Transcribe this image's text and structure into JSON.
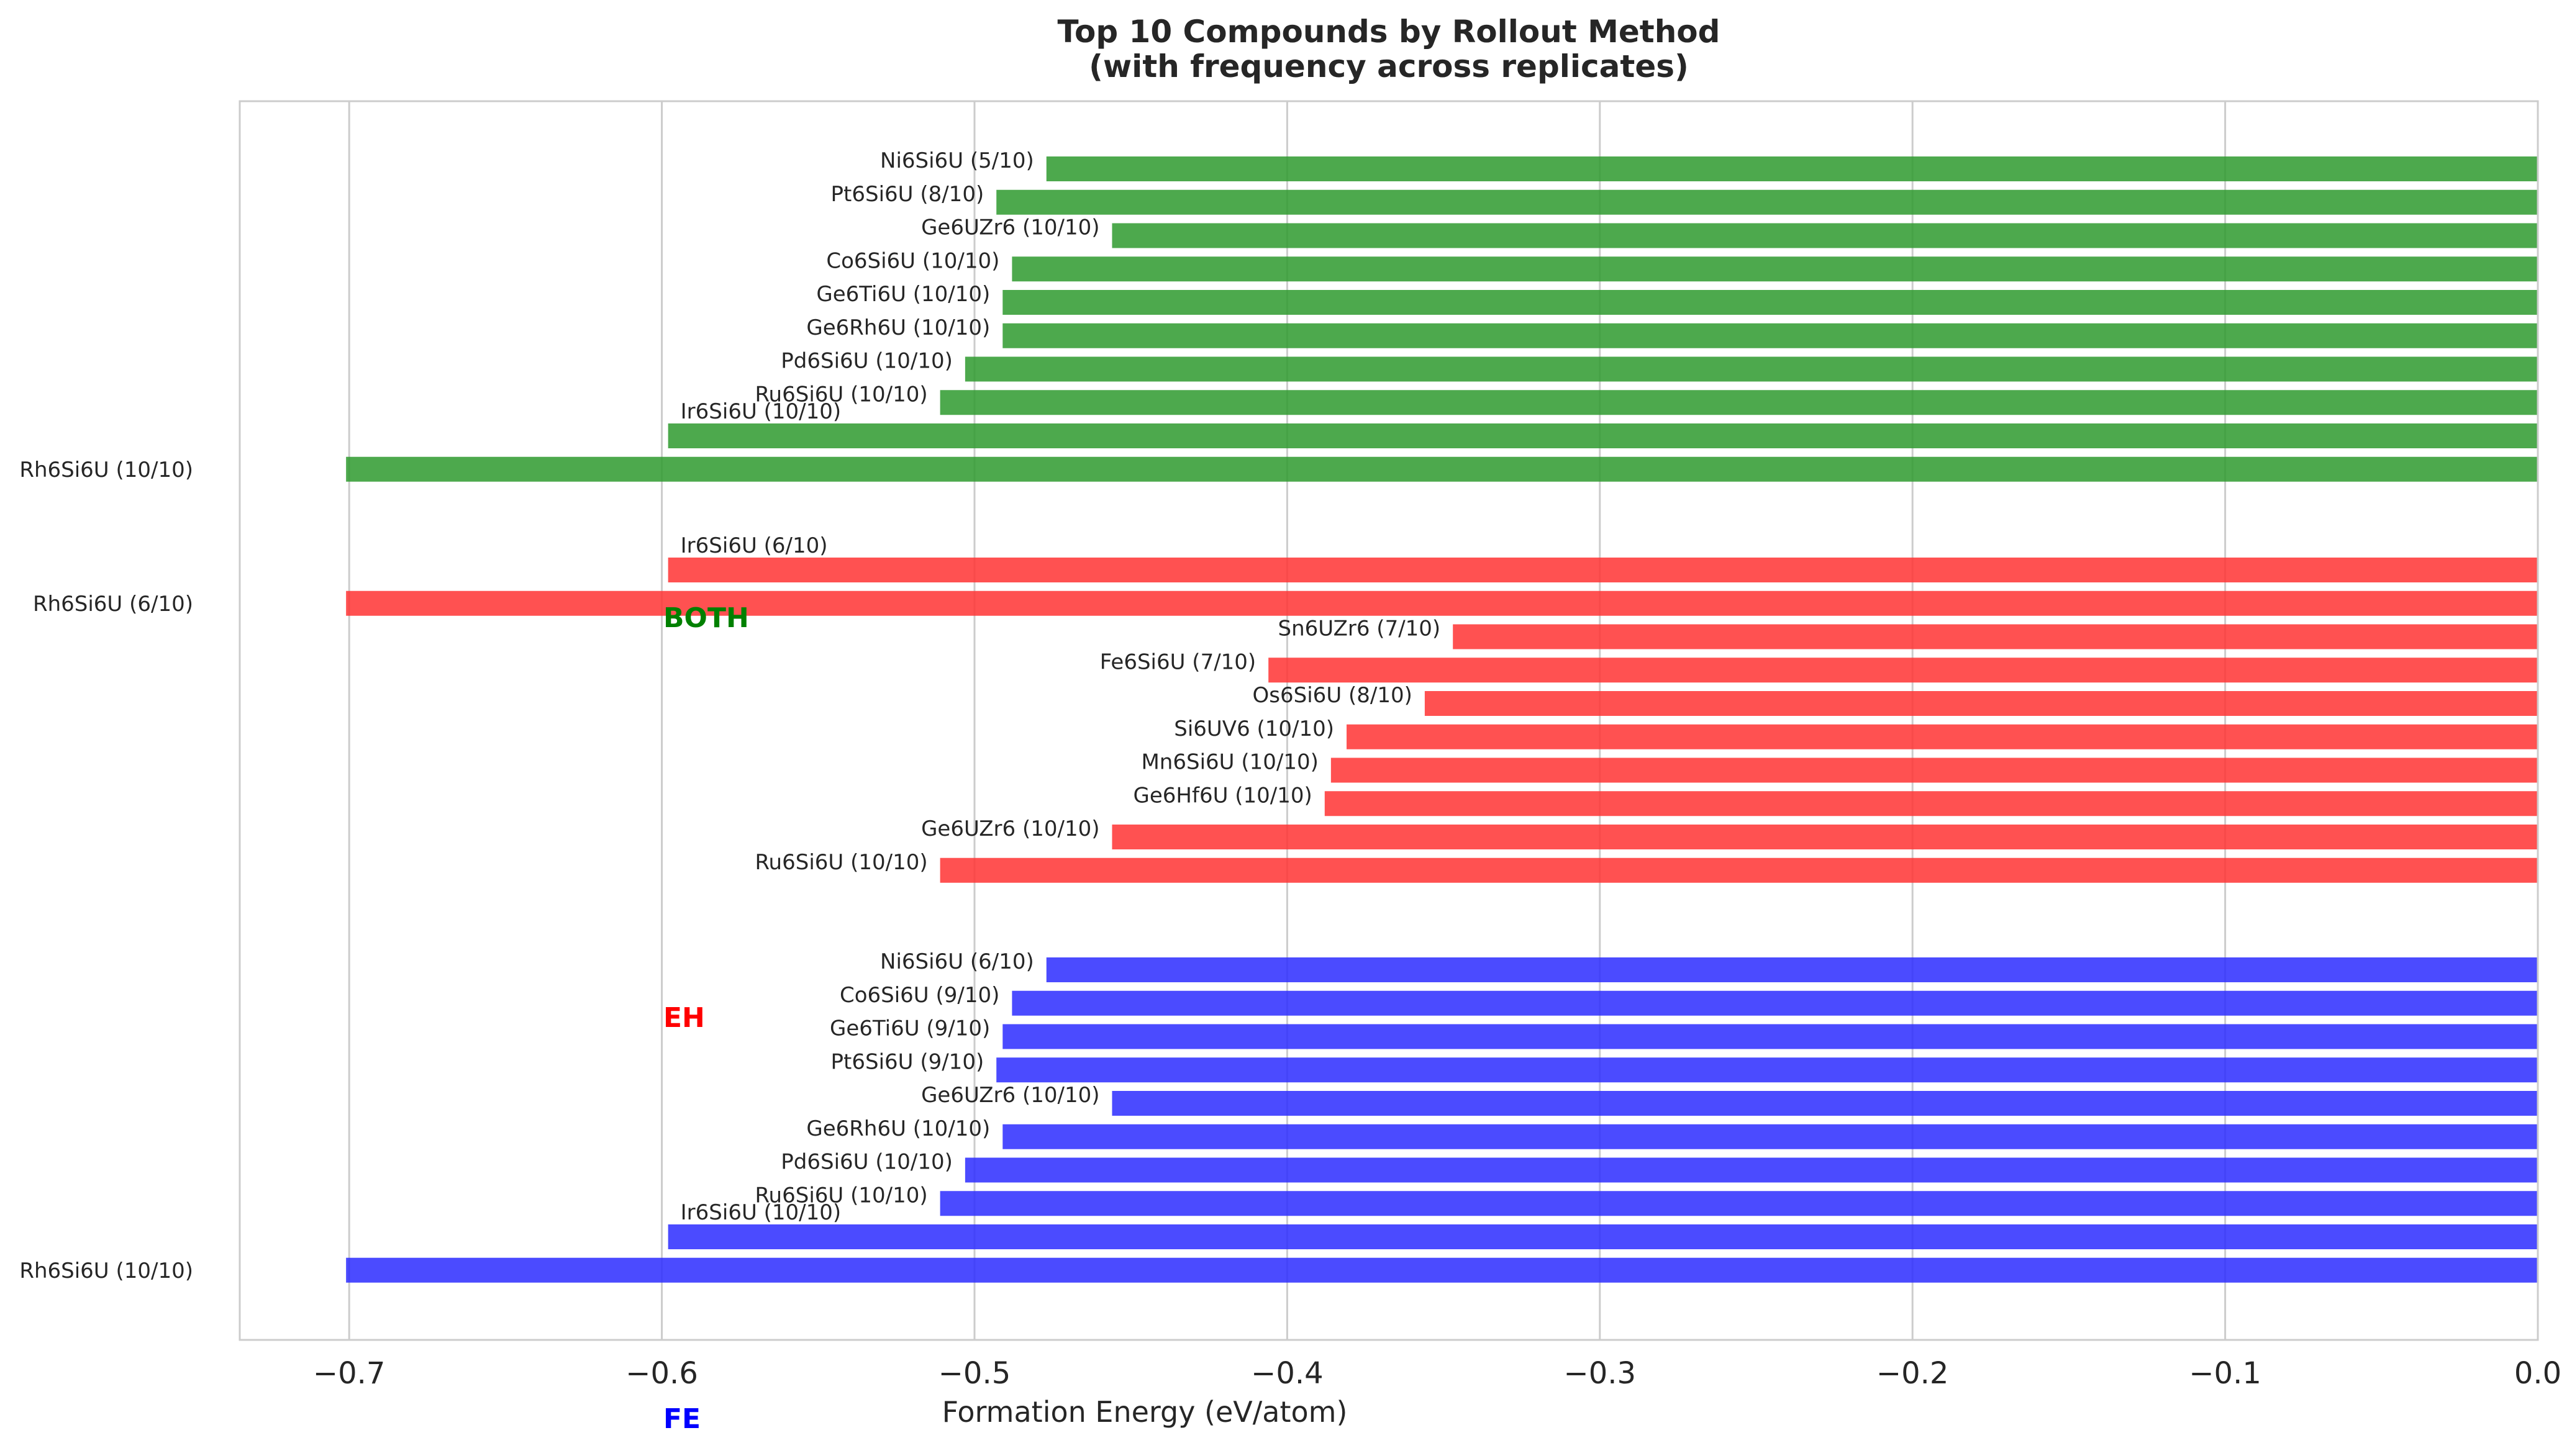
{
  "chart_data": {
    "type": "bar",
    "orientation": "horizontal",
    "title": "Top 10 Compounds by Rollout Method\n(with frequency across replicates)",
    "xlabel": "Formation Energy (eV/atom)",
    "ylabel": "",
    "xlim": [
      -0.735,
      0.0
    ],
    "xticks": [
      -0.7,
      -0.6,
      -0.5,
      -0.4,
      -0.3,
      -0.2,
      -0.1,
      0.0
    ],
    "xtick_labels": [
      "−0.7",
      "−0.6",
      "−0.5",
      "−0.4",
      "−0.3",
      "−0.2",
      "−0.1",
      "0.0"
    ],
    "grid": true,
    "group_labels": [
      {
        "text": "BOTH",
        "color": "#008000"
      },
      {
        "text": "EH",
        "color": "#ff0000"
      },
      {
        "text": "FE",
        "color": "#0000ff"
      }
    ],
    "groups": [
      {
        "color": "#2e9a2e",
        "bars": [
          {
            "label": "Ni6Si6U (5/10)",
            "value": -0.477
          },
          {
            "label": "Pt6Si6U (8/10)",
            "value": -0.493
          },
          {
            "label": "Ge6UZr6 (10/10)",
            "value": -0.456
          },
          {
            "label": "Co6Si6U (10/10)",
            "value": -0.488
          },
          {
            "label": "Ge6Ti6U (10/10)",
            "value": -0.491
          },
          {
            "label": "Ge6Rh6U (10/10)",
            "value": -0.491
          },
          {
            "label": "Pd6Si6U (10/10)",
            "value": -0.503
          },
          {
            "label": "Ru6Si6U (10/10)",
            "value": -0.511
          },
          {
            "label": "Ir6Si6U (10/10)",
            "value": -0.598
          },
          {
            "label": "Rh6Si6U (10/10)",
            "value": -0.701
          }
        ]
      },
      {
        "color": "#ff3333",
        "bars": [
          {
            "label": "Ir6Si6U (6/10)",
            "value": -0.598
          },
          {
            "label": "Rh6Si6U (6/10)",
            "value": -0.701
          },
          {
            "label": "Sn6UZr6 (7/10)",
            "value": -0.347
          },
          {
            "label": "Fe6Si6U (7/10)",
            "value": -0.406
          },
          {
            "label": "Os6Si6U (8/10)",
            "value": -0.356
          },
          {
            "label": "Si6UV6 (10/10)",
            "value": -0.381
          },
          {
            "label": "Mn6Si6U (10/10)",
            "value": -0.386
          },
          {
            "label": "Ge6Hf6U (10/10)",
            "value": -0.388
          },
          {
            "label": "Ge6UZr6 (10/10)",
            "value": -0.456
          },
          {
            "label": "Ru6Si6U (10/10)",
            "value": -0.511
          }
        ]
      },
      {
        "color": "#2b2bff",
        "bars": [
          {
            "label": "Ni6Si6U (6/10)",
            "value": -0.477
          },
          {
            "label": "Co6Si6U (9/10)",
            "value": -0.488
          },
          {
            "label": "Ge6Ti6U (9/10)",
            "value": -0.491
          },
          {
            "label": "Pt6Si6U (9/10)",
            "value": -0.493
          },
          {
            "label": "Ge6UZr6 (10/10)",
            "value": -0.456
          },
          {
            "label": "Ge6Rh6U (10/10)",
            "value": -0.491
          },
          {
            "label": "Pd6Si6U (10/10)",
            "value": -0.503
          },
          {
            "label": "Ru6Si6U (10/10)",
            "value": -0.511
          },
          {
            "label": "Ir6Si6U (10/10)",
            "value": -0.598
          },
          {
            "label": "Rh6Si6U (10/10)",
            "value": -0.701
          }
        ]
      }
    ]
  }
}
